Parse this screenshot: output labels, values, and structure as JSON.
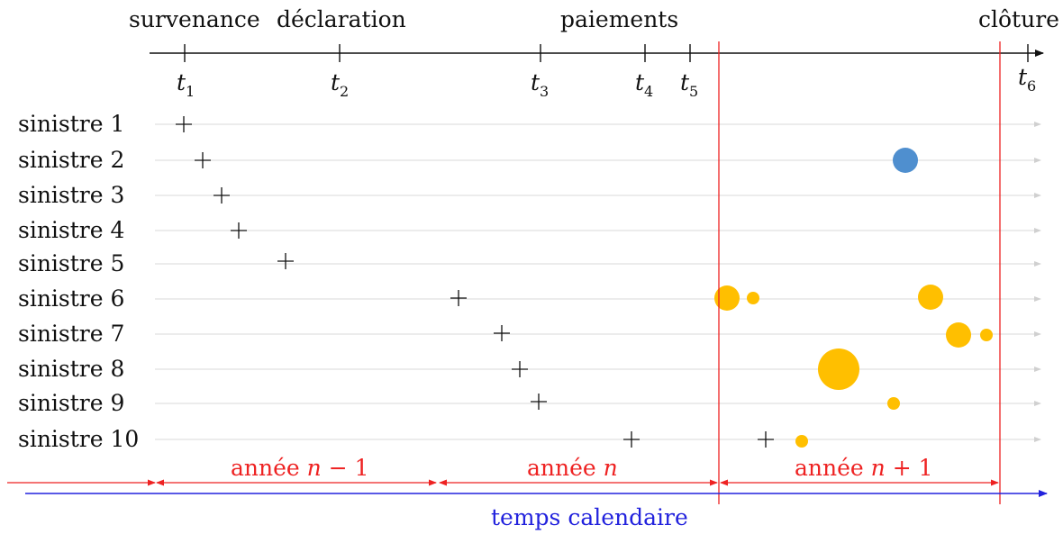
{
  "top_labels": {
    "occurrence": "survenance",
    "declaration": "déclaration",
    "payments": "paiements",
    "closure": "clôture"
  },
  "ticks": [
    {
      "var": "t",
      "sub": "1"
    },
    {
      "var": "t",
      "sub": "2"
    },
    {
      "var": "t",
      "sub": "3"
    },
    {
      "var": "t",
      "sub": "4"
    },
    {
      "var": "t",
      "sub": "5"
    },
    {
      "var": "t",
      "sub": "6"
    }
  ],
  "rows": [
    {
      "label": "sinistre 1"
    },
    {
      "label": "sinistre 2"
    },
    {
      "label": "sinistre 3"
    },
    {
      "label": "sinistre 4"
    },
    {
      "label": "sinistre 5"
    },
    {
      "label": "sinistre 6"
    },
    {
      "label": "sinistre 7"
    },
    {
      "label": "sinistre 8"
    },
    {
      "label": "sinistre 9"
    },
    {
      "label": "sinistre 10"
    }
  ],
  "years": [
    {
      "prefix": "année ",
      "var": "n",
      "suffix": " − 1"
    },
    {
      "prefix": "année ",
      "var": "n",
      "suffix": ""
    },
    {
      "prefix": "année ",
      "var": "n",
      "suffix": " + 1"
    }
  ],
  "calendar_label": "temps calendaire",
  "colors": {
    "axis": "#111111",
    "row_line": "#d8d8d8",
    "boundary": "#ee2222",
    "calendar": "#2222dd",
    "blue_event": "#4f8fcf",
    "yellow_event": "#ffbf00"
  }
}
